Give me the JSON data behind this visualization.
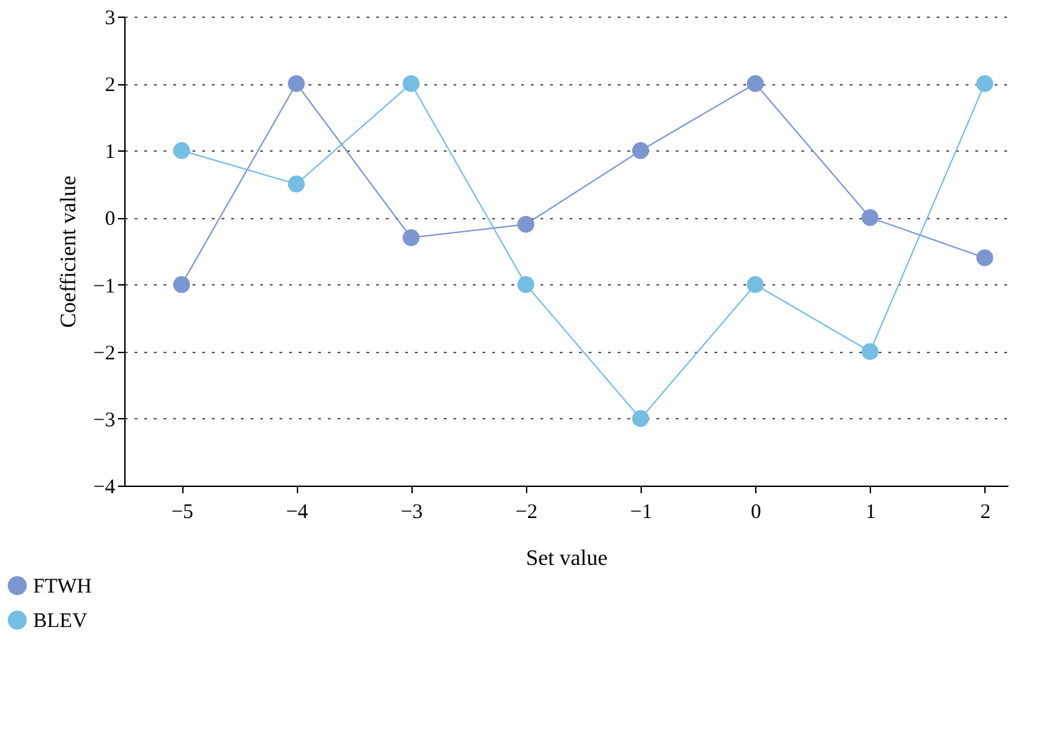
{
  "chart_data": {
    "type": "line",
    "xlabel": "Set value",
    "ylabel": "Coefficient value",
    "x": [
      -5,
      -4,
      -3,
      -2,
      -1,
      0,
      1,
      2
    ],
    "series": [
      {
        "name": "FTWH",
        "color": "#7b96d0",
        "values": [
          -1,
          2,
          -0.3,
          -0.1,
          1,
          2,
          0,
          -0.6
        ]
      },
      {
        "name": "BLEV",
        "color": "#74bde3",
        "values": [
          1,
          0.5,
          2,
          -1,
          -3,
          -1,
          -2,
          2
        ]
      }
    ],
    "xlim": [
      -5.5,
      2.2
    ],
    "xticks": [
      -5,
      -4,
      -3,
      -2,
      -1,
      0,
      1,
      2
    ],
    "ylim": [
      -4,
      3
    ],
    "yticks": [
      -4,
      -3,
      -2,
      -1,
      0,
      1,
      2,
      3
    ],
    "grid": "y",
    "legend": "bottom left",
    "marker": "circle",
    "line_style": "solid"
  }
}
